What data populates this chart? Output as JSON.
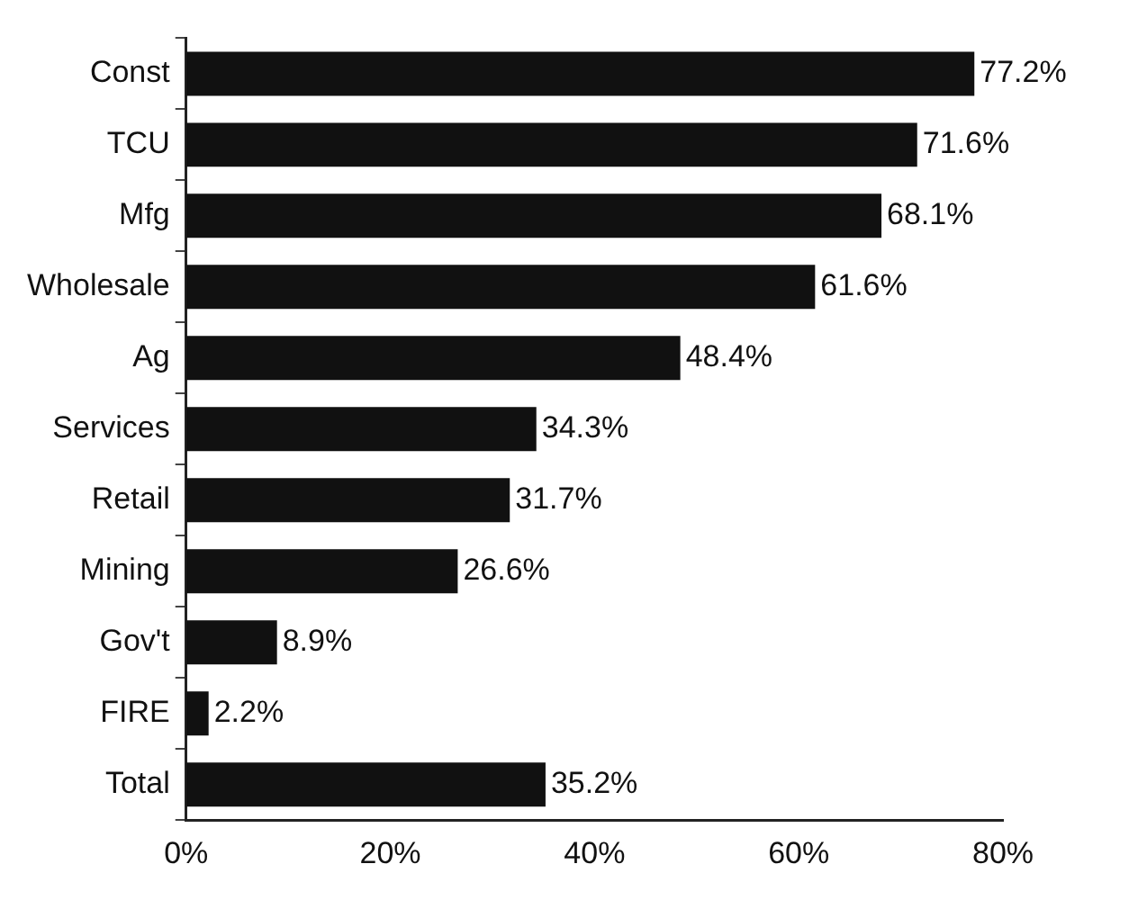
{
  "chart_data": {
    "type": "bar",
    "orientation": "horizontal",
    "categories": [
      "Const",
      "TCU",
      "Mfg",
      "Wholesale",
      "Ag",
      "Services",
      "Retail",
      "Mining",
      "Gov't",
      "FIRE",
      "Total"
    ],
    "values": [
      77.2,
      71.6,
      68.1,
      61.6,
      48.4,
      34.3,
      31.7,
      26.6,
      8.9,
      2.2,
      35.2
    ],
    "value_labels": [
      "77.2%",
      "71.6%",
      "68.1%",
      "61.6%",
      "48.4%",
      "34.3%",
      "31.7%",
      "26.6%",
      "8.9%",
      "2.2%",
      "35.2%"
    ],
    "color": "#111111",
    "xlim": [
      0,
      80
    ],
    "xticks": [
      {
        "value": 0,
        "label": "0%"
      },
      {
        "value": 20,
        "label": "20%"
      },
      {
        "value": 40,
        "label": "40%"
      },
      {
        "value": 60,
        "label": "60%"
      },
      {
        "value": 80,
        "label": "80%"
      }
    ],
    "grid": false,
    "legend": false
  }
}
